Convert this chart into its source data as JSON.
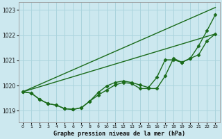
{
  "background_color": "#cce8ef",
  "grid_color": "#aad4dd",
  "line_color": "#1a6b1a",
  "title": "Graphe pression niveau de la mer (hPa)",
  "xlim": [
    -0.5,
    23.5
  ],
  "ylim": [
    1018.55,
    1023.3
  ],
  "yticks": [
    1019,
    1020,
    1021,
    1022,
    1023
  ],
  "xticks": [
    0,
    1,
    2,
    3,
    4,
    5,
    6,
    7,
    8,
    9,
    10,
    11,
    12,
    13,
    14,
    15,
    16,
    17,
    18,
    19,
    20,
    21,
    22,
    23
  ],
  "series": [
    {
      "x": [
        0,
        1,
        2,
        3,
        4,
        5,
        6,
        7,
        8,
        9,
        10,
        11,
        12,
        13,
        14,
        15,
        16,
        17,
        18,
        19,
        20,
        21,
        22,
        23
      ],
      "y": [
        1019.75,
        1019.7,
        1019.45,
        1019.28,
        1019.22,
        1019.08,
        1019.05,
        1019.12,
        1019.38,
        1019.62,
        1019.82,
        1020.02,
        1020.12,
        1020.08,
        1019.88,
        1019.88,
        1019.88,
        1020.38,
        1021.08,
        1020.92,
        1021.08,
        1021.58,
        1022.18,
        1022.82
      ],
      "marker": "D",
      "markersize": 2.5,
      "linewidth": 1.0,
      "zorder": 4
    },
    {
      "x": [
        0,
        1,
        2,
        3,
        4,
        5,
        6,
        7,
        8,
        9,
        10,
        11,
        12,
        13,
        14,
        15,
        16,
        17,
        18,
        19,
        20,
        21,
        22,
        23
      ],
      "y": [
        1019.75,
        1019.7,
        1019.45,
        1019.28,
        1019.22,
        1019.08,
        1019.05,
        1019.12,
        1019.38,
        1019.72,
        1019.98,
        1020.12,
        1020.18,
        1020.12,
        1020.02,
        1019.92,
        1020.32,
        1021.02,
        1021.02,
        1020.92,
        1021.08,
        1021.22,
        1021.78,
        1022.05
      ],
      "marker": "D",
      "markersize": 2.5,
      "linewidth": 1.0,
      "zorder": 3
    },
    {
      "x": [
        0,
        23
      ],
      "y": [
        1019.75,
        1023.1
      ],
      "marker": null,
      "markersize": 0,
      "linewidth": 1.0,
      "zorder": 2
    },
    {
      "x": [
        0,
        23
      ],
      "y": [
        1019.75,
        1022.05
      ],
      "marker": null,
      "markersize": 0,
      "linewidth": 1.0,
      "zorder": 2
    }
  ]
}
